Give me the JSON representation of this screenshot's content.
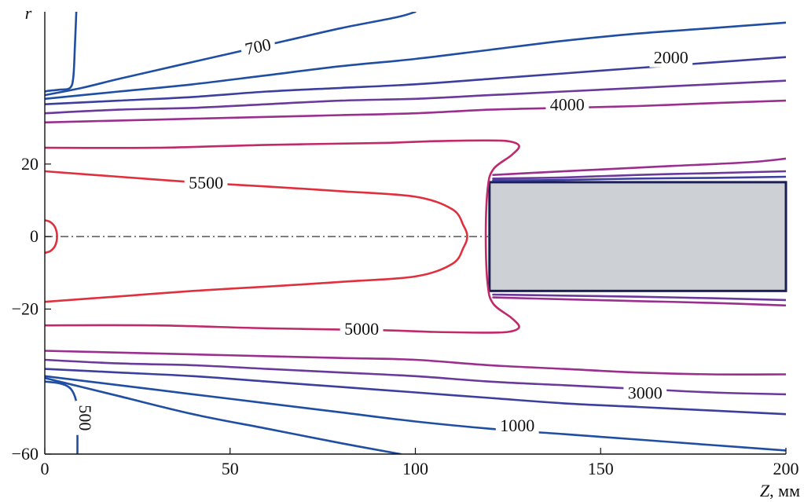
{
  "chart_data": {
    "type": "contour",
    "title": "",
    "xlabel": "Z",
    "xunit": ", мм",
    "ylabel": "r",
    "xlim": [
      0,
      200
    ],
    "ylim": [
      -60,
      62
    ],
    "xticks": [
      0,
      50,
      100,
      150,
      200
    ],
    "yticks": [
      20,
      0,
      -20,
      -60
    ],
    "xtick_labels": [
      "0",
      "50",
      "100",
      "150",
      "200"
    ],
    "ytick_labels": [
      "20",
      "0",
      "−20",
      "−60"
    ],
    "axis_line": {
      "r": 0,
      "style": "dash-dot"
    },
    "obstacle": {
      "z": [
        120,
        200
      ],
      "r": [
        -15,
        15
      ],
      "color": "#cdd0d4"
    },
    "colors": {
      "blue": "#1f4ea3",
      "blue_purple": "#3c3f9e",
      "purple": "#6a3a9a",
      "magenta": "#9a2f8f",
      "magenta_red": "#c02a6a",
      "red": "#e0303e"
    },
    "contours": [
      {
        "id": "c500-top",
        "color": "blue",
        "points": [
          [
            8.5,
            62
          ],
          [
            8.1,
            52
          ],
          [
            7.7,
            44
          ],
          [
            6.8,
            41
          ],
          [
            4,
            40.5
          ],
          [
            1,
            40.2
          ],
          [
            0,
            40
          ]
        ]
      },
      {
        "id": "c700-top",
        "color": "blue",
        "points": [
          [
            0,
            39
          ],
          [
            10,
            41
          ],
          [
            20,
            43.5
          ],
          [
            35,
            47
          ],
          [
            50,
            50.5
          ],
          [
            65,
            54
          ],
          [
            80,
            57.5
          ],
          [
            95,
            60.5
          ],
          [
            100,
            62
          ]
        ]
      },
      {
        "id": "c1000-top",
        "color": "blue",
        "points": [
          [
            0,
            38
          ],
          [
            20,
            40
          ],
          [
            40,
            42
          ],
          [
            60,
            44.5
          ],
          [
            80,
            47
          ],
          [
            100,
            49
          ],
          [
            120,
            51.5
          ],
          [
            140,
            54
          ],
          [
            160,
            56
          ],
          [
            180,
            57.5
          ],
          [
            200,
            59
          ]
        ]
      },
      {
        "id": "c2000-top",
        "color": "blue_purple",
        "points": [
          [
            0,
            36.5
          ],
          [
            20,
            37.5
          ],
          [
            40,
            38.5
          ],
          [
            60,
            40
          ],
          [
            80,
            41
          ],
          [
            100,
            42
          ],
          [
            120,
            43.5
          ],
          [
            140,
            45
          ],
          [
            160,
            46.5
          ],
          [
            180,
            48
          ],
          [
            200,
            49.5
          ]
        ]
      },
      {
        "id": "c3000-top",
        "color": "purple",
        "points": [
          [
            0,
            34
          ],
          [
            20,
            35
          ],
          [
            40,
            35.5
          ],
          [
            60,
            36.5
          ],
          [
            80,
            37.5
          ],
          [
            100,
            38
          ],
          [
            120,
            39
          ],
          [
            140,
            40
          ],
          [
            160,
            41
          ],
          [
            180,
            42
          ],
          [
            200,
            43
          ]
        ]
      },
      {
        "id": "c4000-top",
        "color": "magenta",
        "points": [
          [
            0,
            31.5
          ],
          [
            20,
            32
          ],
          [
            40,
            32.5
          ],
          [
            60,
            33
          ],
          [
            80,
            33.5
          ],
          [
            100,
            34
          ],
          [
            120,
            35
          ],
          [
            140,
            35.5
          ],
          [
            160,
            36
          ],
          [
            180,
            36.8
          ],
          [
            200,
            37.5
          ]
        ]
      },
      {
        "id": "c5000",
        "color": "magenta_red",
        "points": [
          [
            0,
            24.5
          ],
          [
            30,
            24.5
          ],
          [
            60,
            25.3
          ],
          [
            90,
            25.8
          ],
          [
            105,
            26.3
          ],
          [
            118,
            26.5
          ],
          [
            125,
            26.3
          ],
          [
            128,
            25
          ],
          [
            126,
            22.5
          ],
          [
            121,
            18.5
          ],
          [
            119.5,
            13
          ],
          [
            119,
            0
          ],
          [
            119.5,
            -13
          ],
          [
            121,
            -18.5
          ],
          [
            126,
            -22.5
          ],
          [
            128,
            -25
          ],
          [
            125,
            -26.3
          ],
          [
            118,
            -26.5
          ],
          [
            105,
            -26.3
          ],
          [
            90,
            -25.8
          ],
          [
            60,
            -25.3
          ],
          [
            30,
            -24.5
          ],
          [
            0,
            -24.5
          ]
        ]
      },
      {
        "id": "c5500",
        "color": "red",
        "points": [
          [
            0,
            18
          ],
          [
            20,
            16.5
          ],
          [
            40,
            15
          ],
          [
            60,
            13.8
          ],
          [
            80,
            12.5
          ],
          [
            100,
            11
          ],
          [
            110,
            7.5
          ],
          [
            113,
            3
          ],
          [
            114,
            0
          ],
          [
            113,
            -3
          ],
          [
            110,
            -7.5
          ],
          [
            100,
            -11
          ],
          [
            80,
            -12.5
          ],
          [
            60,
            -13.8
          ],
          [
            40,
            -15
          ],
          [
            20,
            -16.5
          ],
          [
            0,
            -18
          ]
        ]
      },
      {
        "id": "c5500-axis",
        "color": "red",
        "points": [
          [
            0,
            4.5
          ],
          [
            1.5,
            4
          ],
          [
            2.8,
            2.5
          ],
          [
            3.3,
            0
          ],
          [
            2.8,
            -2.5
          ],
          [
            1.5,
            -4
          ],
          [
            0,
            -4.5
          ]
        ]
      },
      {
        "id": "c4500-top",
        "color": "magenta",
        "points": [
          [
            121,
            17
          ],
          [
            130,
            17.5
          ],
          [
            150,
            18.5
          ],
          [
            170,
            19.5
          ],
          [
            190,
            20.5
          ],
          [
            200,
            21.5
          ]
        ]
      },
      {
        "id": "c4000-step",
        "color": "purple",
        "points": [
          [
            121,
            16
          ],
          [
            140,
            16.3
          ],
          [
            160,
            17
          ],
          [
            180,
            17.5
          ],
          [
            200,
            18
          ]
        ]
      },
      {
        "id": "c3000-step",
        "color": "blue_purple",
        "points": [
          [
            121,
            15.5
          ],
          [
            140,
            15.6
          ],
          [
            160,
            16
          ],
          [
            180,
            16.2
          ],
          [
            200,
            16.5
          ]
        ]
      },
      {
        "id": "c4500-bottom",
        "color": "magenta",
        "points": [
          [
            121,
            -16.8
          ],
          [
            140,
            -17.3
          ],
          [
            160,
            -17.8
          ],
          [
            180,
            -18.3
          ],
          [
            200,
            -19
          ]
        ]
      },
      {
        "id": "c4000-bstep",
        "color": "purple",
        "points": [
          [
            121,
            -16
          ],
          [
            140,
            -16.3
          ],
          [
            160,
            -16.6
          ],
          [
            180,
            -17
          ],
          [
            200,
            -17.5
          ]
        ]
      },
      {
        "id": "c4000-bottom",
        "color": "magenta",
        "points": [
          [
            0,
            -31.5
          ],
          [
            20,
            -32
          ],
          [
            40,
            -32.5
          ],
          [
            60,
            -33
          ],
          [
            80,
            -33.5
          ],
          [
            100,
            -34
          ],
          [
            120,
            -35.5
          ],
          [
            140,
            -36.5
          ],
          [
            160,
            -37.5
          ],
          [
            180,
            -38
          ],
          [
            200,
            -38
          ]
        ]
      },
      {
        "id": "c3000-bottom",
        "color": "purple",
        "points": [
          [
            0,
            -34
          ],
          [
            20,
            -35
          ],
          [
            40,
            -35.5
          ],
          [
            60,
            -36.5
          ],
          [
            80,
            -37.5
          ],
          [
            100,
            -38.5
          ],
          [
            120,
            -40
          ],
          [
            140,
            -41
          ],
          [
            160,
            -42
          ],
          [
            180,
            -43
          ],
          [
            200,
            -43.5
          ]
        ]
      },
      {
        "id": "c2000-bottom",
        "color": "blue_purple",
        "points": [
          [
            0,
            -36.5
          ],
          [
            20,
            -37.5
          ],
          [
            40,
            -38.5
          ],
          [
            60,
            -40
          ],
          [
            80,
            -41.5
          ],
          [
            100,
            -43
          ],
          [
            120,
            -44.5
          ],
          [
            140,
            -46
          ],
          [
            160,
            -47
          ],
          [
            180,
            -48
          ],
          [
            200,
            -49
          ]
        ]
      },
      {
        "id": "c1000-bottom",
        "color": "blue",
        "points": [
          [
            0,
            -38.5
          ],
          [
            20,
            -41
          ],
          [
            40,
            -43.5
          ],
          [
            60,
            -46
          ],
          [
            80,
            -48.5
          ],
          [
            100,
            -51
          ],
          [
            120,
            -53
          ],
          [
            140,
            -54.5
          ],
          [
            160,
            -56
          ],
          [
            180,
            -57.5
          ],
          [
            200,
            -59
          ]
        ]
      },
      {
        "id": "c700-bottom",
        "color": "blue",
        "points": [
          [
            0,
            -39
          ],
          [
            20,
            -44
          ],
          [
            40,
            -49
          ],
          [
            60,
            -53
          ],
          [
            80,
            -57
          ],
          [
            96,
            -60
          ]
        ]
      },
      {
        "id": "c500-bottom",
        "color": "blue",
        "points": [
          [
            0,
            -40
          ],
          [
            4,
            -40.5
          ],
          [
            7,
            -42
          ],
          [
            8.6,
            -46
          ],
          [
            8.8,
            -52
          ],
          [
            8.8,
            -60
          ]
        ]
      }
    ],
    "contour_labels": [
      {
        "text": "700",
        "z": 57.5,
        "r": 52.5,
        "rotate": -12
      },
      {
        "text": "2000",
        "z": 169,
        "r": 49.5,
        "rotate": 0
      },
      {
        "text": "4000",
        "z": 141,
        "r": 36.5,
        "rotate": 0
      },
      {
        "text": "5500",
        "z": 43.5,
        "r": 15,
        "rotate": 0
      },
      {
        "text": "5000",
        "z": 85.5,
        "r": -25.3,
        "rotate": 0
      },
      {
        "text": "3000",
        "z": 162,
        "r": -43,
        "rotate": 0
      },
      {
        "text": "1000",
        "z": 127.5,
        "r": -52,
        "rotate": 0
      },
      {
        "text": "500",
        "z": 11,
        "r": -50,
        "rotate": 90
      }
    ]
  }
}
